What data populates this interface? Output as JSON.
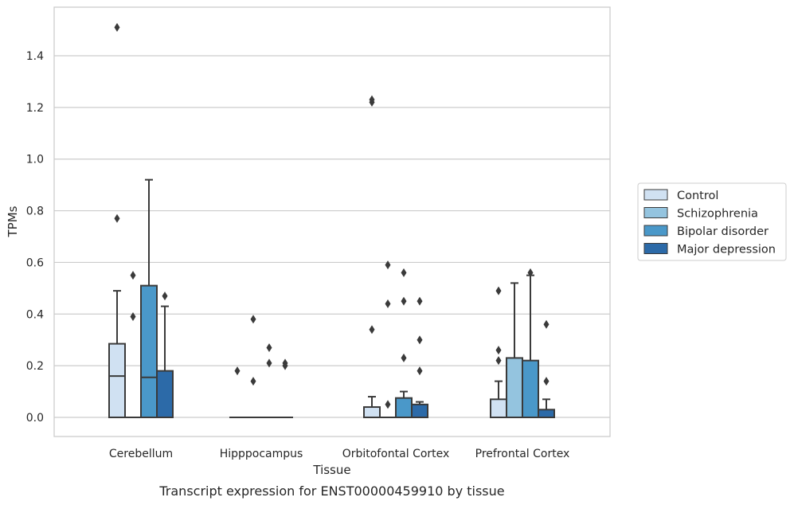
{
  "caption": "Transcript expression for ENST00000459910 by tissue",
  "chart_data": {
    "type": "box",
    "xlabel": "Tissue",
    "ylabel": "TPMs",
    "ylim": [
      -0.075,
      1.56
    ],
    "yticks": [
      "0.0",
      "0.2",
      "0.4",
      "0.6",
      "0.8",
      "1.0",
      "1.2",
      "1.4"
    ],
    "grid": "horizontal",
    "legend_position": "right",
    "categories": [
      "Cerebellum",
      "Hipppocampus",
      "Orbitofontal Cortex",
      "Prefrontal Cortex"
    ],
    "series": [
      {
        "name": "Control",
        "color": "#d0e1f2",
        "boxes": [
          {
            "q1": 0.0,
            "median": 0.16,
            "q3": 0.285,
            "whislo": 0.0,
            "whishi": 0.49,
            "fliers": [
              1.51,
              0.77
            ]
          },
          {
            "q1": 0.0,
            "median": 0.0,
            "q3": 0.0,
            "whislo": 0.0,
            "whishi": 0.0,
            "fliers": [
              0.18
            ]
          },
          {
            "q1": 0.0,
            "median": 0.0,
            "q3": 0.04,
            "whislo": 0.0,
            "whishi": 0.08,
            "fliers": [
              1.23,
              1.22,
              0.34
            ]
          },
          {
            "q1": 0.0,
            "median": 0.0,
            "q3": 0.07,
            "whislo": 0.0,
            "whishi": 0.14,
            "fliers": [
              0.49,
              0.26,
              0.22
            ]
          }
        ]
      },
      {
        "name": "Schizophrenia",
        "color": "#94c4df",
        "boxes": [
          {
            "q1": 0.0,
            "median": 0.0,
            "q3": 0.0,
            "whislo": 0.0,
            "whishi": 0.0,
            "fliers": [
              0.55,
              0.39
            ]
          },
          {
            "q1": 0.0,
            "median": 0.0,
            "q3": 0.0,
            "whislo": 0.0,
            "whishi": 0.0,
            "fliers": [
              0.38,
              0.14
            ]
          },
          {
            "q1": 0.0,
            "median": 0.0,
            "q3": 0.0,
            "whislo": 0.0,
            "whishi": 0.0,
            "fliers": [
              0.59,
              0.44,
              0.05
            ]
          },
          {
            "q1": 0.0,
            "median": 0.0,
            "q3": 0.23,
            "whislo": 0.0,
            "whishi": 0.52,
            "fliers": []
          }
        ]
      },
      {
        "name": "Bipolar disorder",
        "color": "#4a98c9",
        "boxes": [
          {
            "q1": 0.0,
            "median": 0.155,
            "q3": 0.51,
            "whislo": 0.0,
            "whishi": 0.92,
            "fliers": []
          },
          {
            "q1": 0.0,
            "median": 0.0,
            "q3": 0.0,
            "whislo": 0.0,
            "whishi": 0.0,
            "fliers": [
              0.27,
              0.21
            ]
          },
          {
            "q1": 0.0,
            "median": 0.0,
            "q3": 0.075,
            "whislo": 0.0,
            "whishi": 0.1,
            "fliers": [
              0.56,
              0.45,
              0.23
            ]
          },
          {
            "q1": 0.0,
            "median": 0.0,
            "q3": 0.22,
            "whislo": 0.0,
            "whishi": 0.55,
            "fliers": [
              0.56
            ]
          }
        ]
      },
      {
        "name": "Major depression",
        "color": "#2c6aa8",
        "boxes": [
          {
            "q1": 0.0,
            "median": 0.0,
            "q3": 0.18,
            "whislo": 0.0,
            "whishi": 0.43,
            "fliers": [
              0.47
            ]
          },
          {
            "q1": 0.0,
            "median": 0.0,
            "q3": 0.0,
            "whislo": 0.0,
            "whishi": 0.0,
            "fliers": [
              0.21,
              0.2
            ]
          },
          {
            "q1": 0.0,
            "median": 0.0,
            "q3": 0.05,
            "whislo": 0.0,
            "whishi": 0.06,
            "fliers": [
              0.45,
              0.3,
              0.18
            ]
          },
          {
            "q1": 0.0,
            "median": 0.0,
            "q3": 0.03,
            "whislo": 0.0,
            "whishi": 0.07,
            "fliers": [
              0.36,
              0.14
            ]
          }
        ]
      }
    ]
  }
}
